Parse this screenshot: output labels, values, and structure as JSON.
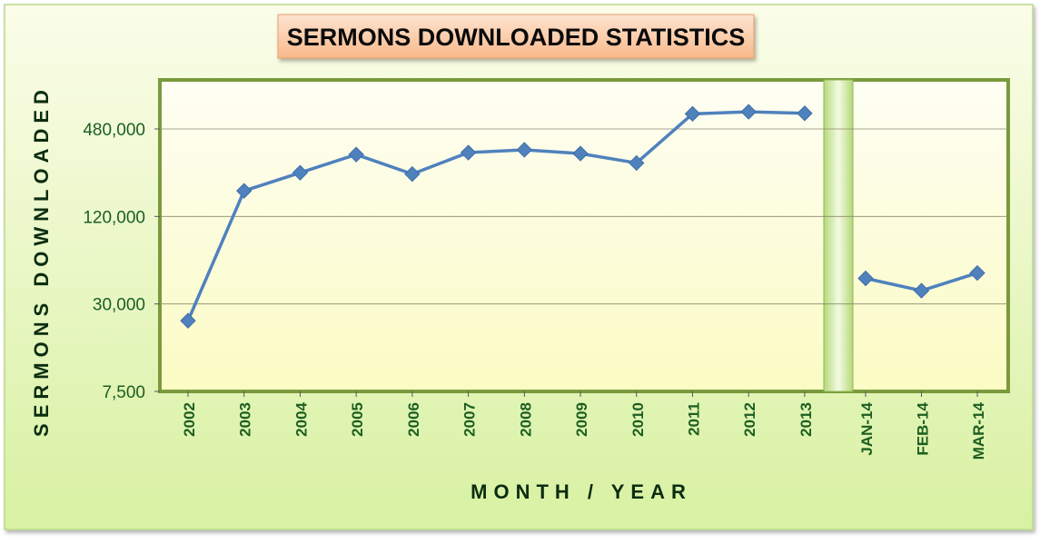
{
  "chart_data": {
    "type": "line",
    "title": "SERMONS DOWNLOADED STATISTICS",
    "xlabel": "MONTH / YEAR",
    "ylabel": "SERMONS DOWNLOADED",
    "y_scale": "log",
    "y_ticks": [
      7500,
      30000,
      120000,
      480000
    ],
    "y_tick_labels": [
      "7,500",
      "30,000",
      "120,000",
      "480,000"
    ],
    "ylim": [
      7500,
      960000
    ],
    "grid": true,
    "legend": "none",
    "line_color": "#4f81bd",
    "segments": [
      {
        "categories": [
          "2002",
          "2003",
          "2004",
          "2005",
          "2006",
          "2007",
          "2008",
          "2009",
          "2010",
          "2011",
          "2012",
          "2013"
        ],
        "values": [
          23000,
          180000,
          240000,
          320000,
          235000,
          330000,
          345000,
          325000,
          280000,
          610000,
          630000,
          615000
        ]
      },
      {
        "categories": [
          "JAN-14",
          "FEB-14",
          "MAR-14"
        ],
        "values": [
          45000,
          37000,
          49000
        ]
      }
    ]
  },
  "colors": {
    "background_top": "#fafde8",
    "background_bottom": "#d9f2a4",
    "plot_border": "#7a9a3c",
    "tick_text": "#1b5e20",
    "axis_title": "#0b2d10",
    "title_box": "#fbcba4"
  }
}
